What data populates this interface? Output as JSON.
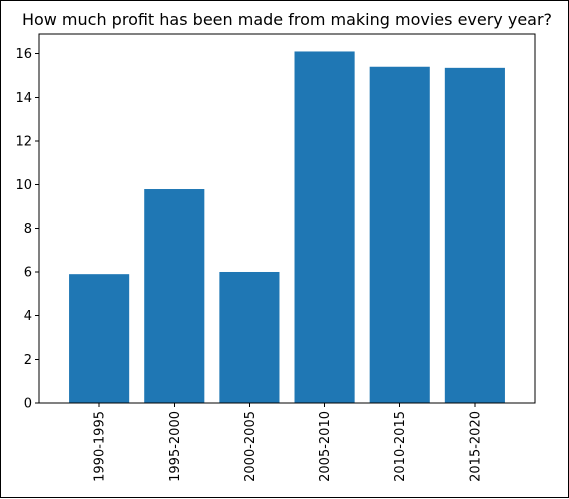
{
  "chart_data": {
    "type": "bar",
    "title": "How much profit has been made from making movies every year?",
    "categories": [
      "1990-1995",
      "1995-2000",
      "2000-2005",
      "2005-2010",
      "2010-2015",
      "2015-2020"
    ],
    "values": [
      5.9,
      9.8,
      6.0,
      16.1,
      15.4,
      15.35
    ],
    "xlabel": "",
    "ylabel": "",
    "ylim": [
      0,
      16.9
    ],
    "yticks": [
      0,
      2,
      4,
      6,
      8,
      10,
      12,
      14,
      16
    ],
    "bar_color": "#1f77b4",
    "grid": false,
    "x_tick_rotation": "vertical"
  }
}
